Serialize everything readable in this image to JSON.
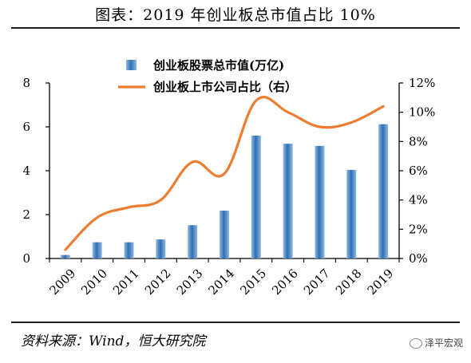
{
  "title": "图表：2019 年创业板总市值占比 10%",
  "source": "资料来源：Wind，恒大研究院",
  "watermark": "泽平宏观",
  "chart_data": {
    "type": "bar",
    "categories": [
      "2009",
      "2010",
      "2011",
      "2012",
      "2013",
      "2014",
      "2015",
      "2016",
      "2017",
      "2018",
      "2019"
    ],
    "series": [
      {
        "name": "创业板股票总市值(万亿)",
        "type": "bar",
        "axis": "left",
        "color": "#3a7bbf",
        "values": [
          0.16,
          0.74,
          0.74,
          0.87,
          1.52,
          2.18,
          5.6,
          5.23,
          5.13,
          4.04,
          6.12
        ]
      },
      {
        "name": "创业板上市公司占比（右）",
        "type": "line",
        "axis": "right",
        "color": "#ed7d31",
        "values": [
          0.6,
          2.8,
          3.5,
          4.0,
          6.6,
          5.8,
          10.8,
          10.0,
          9.0,
          9.3,
          10.4
        ]
      }
    ],
    "y_left": {
      "min": 0,
      "max": 8,
      "ticks": [
        "0",
        "2",
        "4",
        "6",
        "8"
      ]
    },
    "y_right": {
      "min": 0,
      "max": 12,
      "ticks": [
        "0%",
        "2%",
        "4%",
        "6%",
        "8%",
        "10%",
        "12%"
      ]
    },
    "grid": false,
    "legend": "top-center"
  }
}
